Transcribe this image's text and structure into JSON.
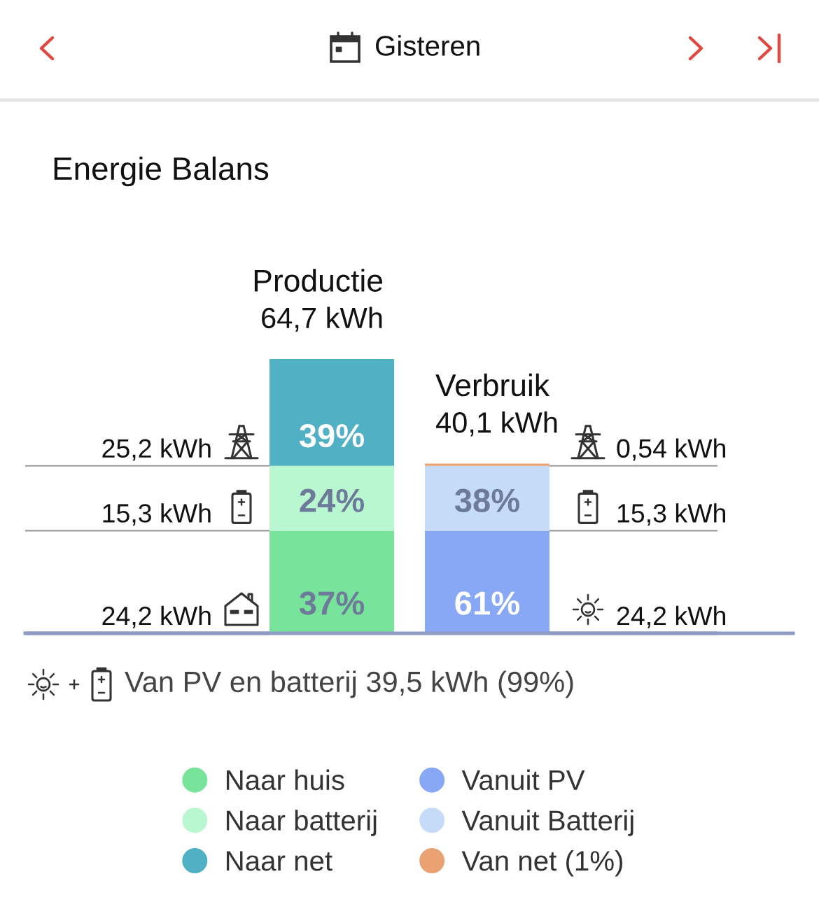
{
  "chart_data": {
    "type": "bar",
    "title": "Energie Balans",
    "stacked": true,
    "legend": "bottom",
    "categories": [
      "Productie",
      "Verbruik"
    ],
    "series": [
      {
        "name": "Naar huis",
        "color": "#78e39a",
        "values": [
          24.2,
          null
        ],
        "value_labels": [
          "24,2 kWh",
          null
        ]
      },
      {
        "name": "Naar batterij",
        "color": "#b8f7d0",
        "values": [
          15.3,
          null
        ],
        "value_labels": [
          "15,3 kWh",
          null
        ]
      },
      {
        "name": "Naar net",
        "color": "#50b0c4",
        "values": [
          25.2,
          null
        ],
        "value_labels": [
          "25,2 kWh",
          null
        ]
      },
      {
        "name": "Vanuit PV",
        "color": "#88a8f5",
        "values": [
          null,
          24.2
        ],
        "value_labels": [
          null,
          "24,2 kWh"
        ]
      },
      {
        "name": "Vanuit Batterij",
        "color": "#c6dbf8",
        "values": [
          null,
          15.3
        ],
        "value_labels": [
          null,
          "15,3 kWh"
        ]
      },
      {
        "name": "Van net (1%)",
        "color": "#eba272",
        "values": [
          null,
          0.54
        ],
        "value_labels": [
          null,
          "0,54 kWh"
        ]
      }
    ],
    "totals": [
      "64,7 kWh",
      "40,1 kWh"
    ],
    "annotations": [
      "Gisteren",
      "Van PV en batterij 39,5 kWh (99%)",
      {
        "text": "39%",
        "x": "Productie",
        "y": 64.7
      },
      {
        "text": "24%",
        "x": "Productie",
        "y": 39.5
      },
      {
        "text": "37%",
        "x": "Productie",
        "y": 24.2
      },
      {
        "text": "38%",
        "x": "Verbruik",
        "y": 39.5
      },
      {
        "text": "61%",
        "x": "Verbruik",
        "y": 24.2
      }
    ]
  }
}
